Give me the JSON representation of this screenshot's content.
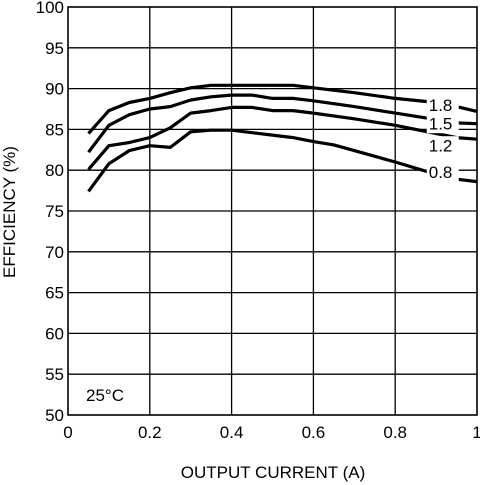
{
  "chart_data": {
    "type": "line",
    "title": "",
    "xlabel": "OUTPUT CURRENT (A)",
    "ylabel": "EFFICIENCY (%)",
    "xlim": [
      0,
      1
    ],
    "ylim": [
      50,
      100
    ],
    "xticks": [
      0,
      0.2,
      0.4,
      0.6,
      0.8,
      1
    ],
    "xtick_labels": [
      "0",
      "0.2",
      "0.4",
      "0.6",
      "0.8",
      "1"
    ],
    "yticks": [
      50,
      55,
      60,
      65,
      70,
      75,
      80,
      85,
      90,
      95,
      100
    ],
    "ytick_labels": [
      "50",
      "55",
      "60",
      "65",
      "70",
      "75",
      "80",
      "85",
      "90",
      "95",
      "100"
    ],
    "grid": true,
    "annotation": "25°C",
    "series": [
      {
        "name": "1.8",
        "x": [
          0.05,
          0.1,
          0.15,
          0.2,
          0.25,
          0.3,
          0.35,
          0.4,
          0.45,
          0.5,
          0.55,
          0.6,
          0.7,
          0.8,
          0.9,
          0.95,
          1.0
        ],
        "y": [
          84.5,
          87.3,
          88.3,
          88.8,
          89.5,
          90.1,
          90.4,
          90.4,
          90.4,
          90.4,
          90.4,
          90.1,
          89.5,
          88.8,
          88.3,
          87.8,
          87.2
        ]
      },
      {
        "name": "1.5",
        "x": [
          0.05,
          0.1,
          0.15,
          0.2,
          0.25,
          0.3,
          0.35,
          0.4,
          0.45,
          0.5,
          0.55,
          0.6,
          0.7,
          0.8,
          0.9,
          0.95,
          1.0
        ],
        "y": [
          82.2,
          85.5,
          86.8,
          87.5,
          87.8,
          88.6,
          89.0,
          89.2,
          89.2,
          88.8,
          88.8,
          88.5,
          87.8,
          87.0,
          86.2,
          85.8,
          85.7
        ]
      },
      {
        "name": "1.2",
        "x": [
          0.05,
          0.1,
          0.15,
          0.2,
          0.25,
          0.3,
          0.35,
          0.4,
          0.45,
          0.5,
          0.55,
          0.6,
          0.7,
          0.8,
          0.9,
          0.95,
          1.0
        ],
        "y": [
          80.1,
          83.0,
          83.4,
          84.0,
          85.2,
          87.0,
          87.3,
          87.7,
          87.7,
          87.3,
          87.3,
          87.0,
          86.3,
          85.5,
          84.5,
          84.0,
          83.8
        ]
      },
      {
        "name": "0.8",
        "x": [
          0.05,
          0.1,
          0.15,
          0.2,
          0.25,
          0.3,
          0.35,
          0.4,
          0.45,
          0.5,
          0.55,
          0.6,
          0.65,
          0.7,
          0.8,
          0.9,
          0.95,
          1.0
        ],
        "y": [
          77.4,
          80.8,
          82.4,
          83.0,
          82.8,
          84.7,
          84.9,
          84.9,
          84.6,
          84.3,
          84.0,
          83.5,
          83.1,
          82.4,
          81.0,
          79.5,
          78.9,
          78.6
        ]
      }
    ],
    "series_labels": [
      {
        "name": "1.8",
        "x": 0.882,
        "y": 88.0
      },
      {
        "name": "1.5",
        "x": 0.882,
        "y": 85.7
      },
      {
        "name": "1.2",
        "x": 0.882,
        "y": 83.0
      },
      {
        "name": "0.8",
        "x": 0.882,
        "y": 79.8
      }
    ]
  }
}
